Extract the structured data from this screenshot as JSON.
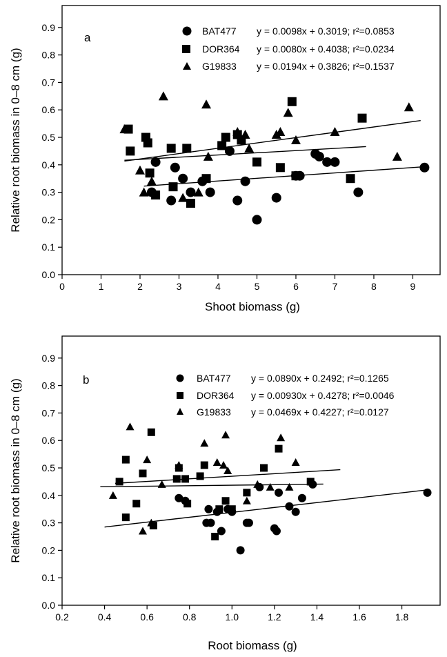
{
  "chart_data": [
    {
      "type": "scatter",
      "panel_label": "a",
      "xlabel": "Shoot biomass (g)",
      "ylabel": "Relative root biomass in 0–8 cm (g)",
      "xlim": [
        0,
        9.7
      ],
      "ylim": [
        0.0,
        0.98
      ],
      "xticks": [
        "0",
        "1",
        "2",
        "3",
        "4",
        "5",
        "6",
        "7",
        "8",
        "9"
      ],
      "yticks": [
        "0.0",
        "0.1",
        "0.2",
        "0.3",
        "0.4",
        "0.5",
        "0.6",
        "0.7",
        "0.8",
        "0.9"
      ],
      "legend_position": "top-right",
      "series": [
        {
          "name": "BAT477",
          "marker": "circle",
          "equation": "y = 0.0098x + 0.3019; r²=0.0853",
          "regression": {
            "slope": 0.0098,
            "intercept": 0.3019,
            "x_range": [
              2.1,
              9.3
            ]
          },
          "points": [
            [
              2.3,
              0.3
            ],
            [
              2.4,
              0.41
            ],
            [
              2.8,
              0.27
            ],
            [
              2.9,
              0.39
            ],
            [
              3.1,
              0.35
            ],
            [
              3.3,
              0.3
            ],
            [
              3.6,
              0.34
            ],
            [
              3.8,
              0.3
            ],
            [
              4.3,
              0.45
            ],
            [
              4.5,
              0.27
            ],
            [
              4.7,
              0.34
            ],
            [
              5.0,
              0.2
            ],
            [
              5.5,
              0.28
            ],
            [
              6.0,
              0.36
            ],
            [
              6.1,
              0.36
            ],
            [
              6.5,
              0.44
            ],
            [
              6.6,
              0.43
            ],
            [
              6.8,
              0.41
            ],
            [
              7.0,
              0.41
            ],
            [
              7.6,
              0.3
            ],
            [
              9.3,
              0.39
            ]
          ]
        },
        {
          "name": "DOR364",
          "marker": "square",
          "equation": "y = 0.0080x + 0.4038; r²=0.0234",
          "regression": {
            "slope": 0.008,
            "intercept": 0.4038,
            "x_range": [
              1.6,
              7.8
            ]
          },
          "points": [
            [
              1.7,
              0.53
            ],
            [
              1.75,
              0.45
            ],
            [
              2.15,
              0.5
            ],
            [
              2.2,
              0.48
            ],
            [
              2.25,
              0.37
            ],
            [
              2.4,
              0.29
            ],
            [
              2.8,
              0.46
            ],
            [
              2.85,
              0.32
            ],
            [
              3.2,
              0.46
            ],
            [
              3.3,
              0.26
            ],
            [
              3.7,
              0.35
            ],
            [
              4.1,
              0.47
            ],
            [
              4.2,
              0.5
            ],
            [
              4.5,
              0.51
            ],
            [
              4.6,
              0.49
            ],
            [
              5.0,
              0.41
            ],
            [
              5.6,
              0.39
            ],
            [
              5.9,
              0.63
            ],
            [
              6.0,
              0.36
            ],
            [
              7.4,
              0.35
            ],
            [
              7.7,
              0.57
            ]
          ]
        },
        {
          "name": "G19833",
          "marker": "triangle",
          "equation": "y = 0.0194x + 0.3826; r²=0.1537",
          "regression": {
            "slope": 0.0194,
            "intercept": 0.3826,
            "x_range": [
              1.6,
              9.2
            ]
          },
          "points": [
            [
              1.6,
              0.53
            ],
            [
              2.0,
              0.38
            ],
            [
              2.1,
              0.3
            ],
            [
              2.3,
              0.34
            ],
            [
              2.6,
              0.65
            ],
            [
              3.1,
              0.28
            ],
            [
              3.5,
              0.3
            ],
            [
              3.7,
              0.62
            ],
            [
              3.75,
              0.43
            ],
            [
              4.5,
              0.52
            ],
            [
              4.7,
              0.51
            ],
            [
              4.8,
              0.46
            ],
            [
              5.5,
              0.51
            ],
            [
              5.6,
              0.52
            ],
            [
              5.8,
              0.59
            ],
            [
              6.0,
              0.49
            ],
            [
              7.0,
              0.52
            ],
            [
              8.6,
              0.43
            ],
            [
              8.9,
              0.61
            ]
          ]
        }
      ]
    },
    {
      "type": "scatter",
      "panel_label": "b",
      "xlabel": "Root biomass (g)",
      "ylabel": "Relative root biomass in 0–8 cm (g)",
      "xlim": [
        0.2,
        1.98
      ],
      "ylim": [
        0.0,
        0.98
      ],
      "xticks": [
        "0.2",
        "0.4",
        "0.6",
        "0.8",
        "1.0",
        "1.2",
        "1.4",
        "1.6",
        "1.8"
      ],
      "yticks": [
        "0.0",
        "0.1",
        "0.2",
        "0.3",
        "0.4",
        "0.5",
        "0.6",
        "0.7",
        "0.8",
        "0.9"
      ],
      "legend_position": "top-right",
      "series": [
        {
          "name": "BAT477",
          "marker": "circle",
          "equation": "y = 0.0890x + 0.2492; r²=0.1265",
          "regression": {
            "slope": 0.089,
            "intercept": 0.2492,
            "x_range": [
              0.4,
              1.92
            ]
          },
          "points": [
            [
              0.75,
              0.39
            ],
            [
              0.78,
              0.38
            ],
            [
              0.88,
              0.3
            ],
            [
              0.89,
              0.35
            ],
            [
              0.9,
              0.3
            ],
            [
              0.93,
              0.34
            ],
            [
              0.95,
              0.27
            ],
            [
              0.98,
              0.35
            ],
            [
              1.0,
              0.34
            ],
            [
              1.04,
              0.2
            ],
            [
              1.07,
              0.3
            ],
            [
              1.08,
              0.3
            ],
            [
              1.13,
              0.43
            ],
            [
              1.2,
              0.28
            ],
            [
              1.21,
              0.27
            ],
            [
              1.22,
              0.41
            ],
            [
              1.27,
              0.36
            ],
            [
              1.3,
              0.34
            ],
            [
              1.33,
              0.39
            ],
            [
              1.38,
              0.44
            ],
            [
              1.92,
              0.41
            ]
          ]
        },
        {
          "name": "DOR364",
          "marker": "square",
          "equation": "y = 0.00930x + 0.4278; r²=0.0046",
          "regression": {
            "slope": 0.0093,
            "intercept": 0.4278,
            "x_range": [
              0.38,
              1.43
            ]
          },
          "points": [
            [
              0.47,
              0.45
            ],
            [
              0.5,
              0.53
            ],
            [
              0.5,
              0.32
            ],
            [
              0.55,
              0.37
            ],
            [
              0.58,
              0.48
            ],
            [
              0.62,
              0.63
            ],
            [
              0.63,
              0.29
            ],
            [
              0.74,
              0.46
            ],
            [
              0.75,
              0.5
            ],
            [
              0.78,
              0.46
            ],
            [
              0.79,
              0.37
            ],
            [
              0.85,
              0.47
            ],
            [
              0.87,
              0.51
            ],
            [
              0.92,
              0.25
            ],
            [
              0.94,
              0.35
            ],
            [
              0.97,
              0.38
            ],
            [
              1.0,
              0.35
            ],
            [
              1.07,
              0.41
            ],
            [
              1.15,
              0.5
            ],
            [
              1.22,
              0.57
            ],
            [
              1.37,
              0.45
            ]
          ]
        },
        {
          "name": "G19833",
          "marker": "triangle",
          "equation": "y = 0.0469x + 0.4227; r²=0.0127",
          "regression": {
            "slope": 0.0469,
            "intercept": 0.4227,
            "x_range": [
              0.45,
              1.51
            ]
          },
          "points": [
            [
              0.44,
              0.4
            ],
            [
              0.52,
              0.65
            ],
            [
              0.58,
              0.27
            ],
            [
              0.6,
              0.53
            ],
            [
              0.62,
              0.3
            ],
            [
              0.67,
              0.44
            ],
            [
              0.75,
              0.51
            ],
            [
              0.87,
              0.59
            ],
            [
              0.93,
              0.52
            ],
            [
              0.96,
              0.51
            ],
            [
              0.97,
              0.62
            ],
            [
              0.98,
              0.49
            ],
            [
              1.07,
              0.38
            ],
            [
              1.12,
              0.44
            ],
            [
              1.18,
              0.43
            ],
            [
              1.23,
              0.61
            ],
            [
              1.27,
              0.43
            ],
            [
              1.3,
              0.52
            ]
          ]
        }
      ]
    }
  ]
}
